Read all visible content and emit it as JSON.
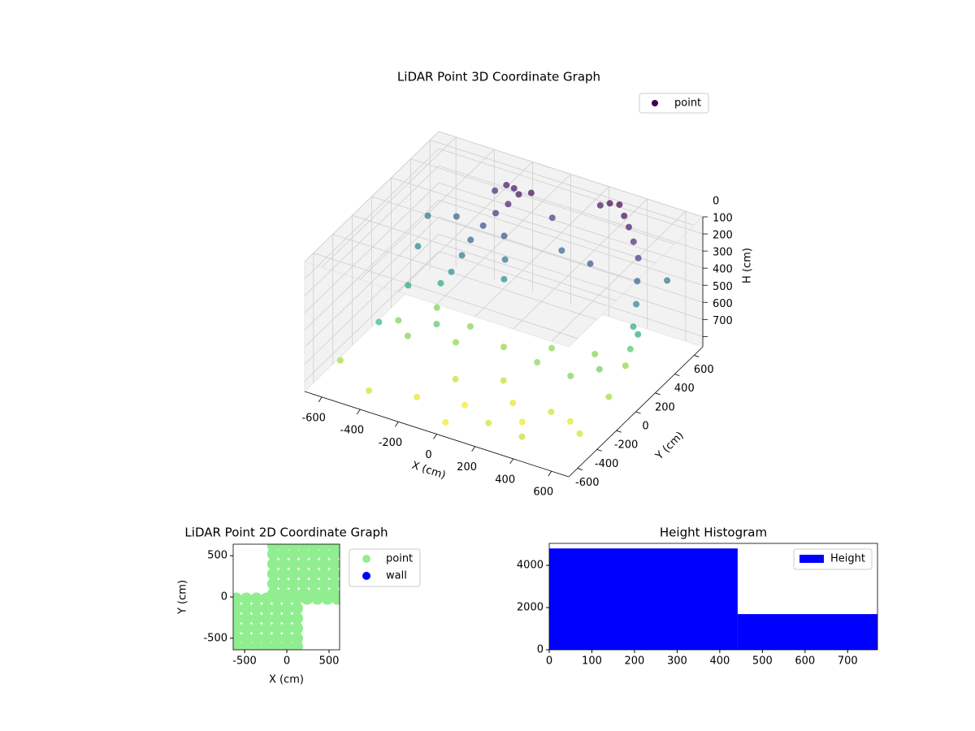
{
  "chart_data": [
    {
      "type": "scatter3d",
      "title": "LiDAR Point 3D Coordinate Graph",
      "xlabel": "X (cm)",
      "ylabel": "Y (cm)",
      "zlabel": "H (cm)",
      "xlim": [
        -690,
        690
      ],
      "ylim": [
        -690,
        690
      ],
      "zlim": [
        0,
        760
      ],
      "zinvert": true,
      "xticks": [
        -600,
        -400,
        -200,
        0,
        200,
        400,
        600
      ],
      "yticks": [
        -600,
        -400,
        -200,
        0,
        200,
        400,
        600
      ],
      "zticks": [
        0,
        100,
        200,
        300,
        400,
        500,
        600,
        700
      ],
      "colormap": "viridis",
      "legend": "upper right",
      "grid": true,
      "series": [
        {
          "name": "point",
          "color": "#440154",
          "x": [
            -200,
            -150,
            -250,
            -100,
            -180,
            -220,
            -260,
            -300,
            -320,
            -350,
            -380,
            -150,
            -120,
            -100,
            300,
            350,
            400,
            450,
            500,
            520,
            540,
            550,
            560,
            560,
            250,
            200,
            -400,
            -200,
            0,
            200,
            400,
            -400,
            -200,
            200,
            400,
            500,
            -600,
            -500,
            -600,
            -400,
            -200,
            0,
            200,
            400,
            600,
            600,
            500,
            300,
            -100,
            100,
            -300,
            -500,
            -550,
            -450,
            0,
            100,
            300,
            600,
            600,
            -300,
            -500,
            0,
            200,
            400
          ],
          "y": [
            500,
            450,
            520,
            480,
            400,
            350,
            300,
            250,
            200,
            150,
            100,
            300,
            250,
            200,
            600,
            550,
            500,
            450,
            400,
            350,
            300,
            250,
            200,
            150,
            600,
            600,
            -200,
            -100,
            0,
            100,
            150,
            100,
            50,
            -50,
            -100,
            0,
            400,
            -300,
            -500,
            -600,
            -500,
            -600,
            -550,
            -600,
            -400,
            -100,
            -300,
            -400,
            -300,
            -200,
            -100,
            0,
            200,
            400,
            500,
            400,
            300,
            500,
            200,
            500,
            -100,
            -400,
            -300,
            -300
          ],
          "z": [
            50,
            40,
            60,
            30,
            80,
            120,
            180,
            250,
            320,
            400,
            450,
            200,
            300,
            380,
            20,
            40,
            60,
            100,
            150,
            250,
            350,
            450,
            550,
            620,
            30,
            60,
            600,
            620,
            630,
            620,
            610,
            600,
            610,
            620,
            600,
            580,
            300,
            500,
            650,
            700,
            720,
            740,
            700,
            680,
            700,
            650,
            720,
            740,
            690,
            680,
            550,
            450,
            350,
            250,
            150,
            250,
            200,
            300,
            450,
            100,
            600,
            750,
            720,
            700
          ]
        }
      ]
    },
    {
      "type": "scatter",
      "title": "LiDAR Point 2D Coordinate Graph",
      "xlabel": "X (cm)",
      "ylabel": "Y (cm)",
      "xlim": [
        -635,
        625
      ],
      "ylim": [
        -640,
        640
      ],
      "xticks": [
        -500,
        0,
        500
      ],
      "yticks": [
        -500,
        0,
        500
      ],
      "legend": "outside",
      "series": [
        {
          "name": "point",
          "color": "#90ee90",
          "x": [
            -160,
            -40,
            80,
            200,
            320,
            440,
            560,
            -160,
            -40,
            80,
            200,
            320,
            440,
            560,
            -160,
            -40,
            80,
            200,
            320,
            440,
            560,
            -160,
            -40,
            80,
            200,
            320,
            440,
            560,
            -160,
            -40,
            80,
            200,
            320,
            440,
            560,
            -160,
            -40,
            80,
            200,
            320,
            440,
            560,
            -600,
            -480,
            -360,
            -240,
            -120,
            0,
            120,
            240,
            360,
            480,
            600,
            -600,
            -480,
            -360,
            -240,
            -120,
            0,
            120,
            -600,
            -480,
            -360,
            -240,
            -120,
            0,
            120,
            -600,
            -480,
            -360,
            -240,
            -120,
            0,
            120,
            -600,
            -480,
            -360,
            -240,
            -120,
            0,
            120,
            -600,
            -480,
            -360,
            -240,
            -120,
            0,
            120
          ],
          "y": [
            40,
            40,
            40,
            40,
            40,
            40,
            40,
            160,
            160,
            160,
            160,
            160,
            160,
            160,
            280,
            280,
            280,
            280,
            280,
            280,
            280,
            400,
            400,
            400,
            400,
            400,
            400,
            400,
            520,
            520,
            520,
            520,
            520,
            520,
            520,
            620,
            620,
            620,
            620,
            620,
            620,
            620,
            -20,
            -20,
            -20,
            -20,
            -20,
            -20,
            -20,
            -20,
            -20,
            -20,
            -20,
            -140,
            -140,
            -140,
            -140,
            -140,
            -140,
            -140,
            -260,
            -260,
            -260,
            -260,
            -260,
            -260,
            -260,
            -380,
            -380,
            -380,
            -380,
            -380,
            -380,
            -380,
            -500,
            -500,
            -500,
            -500,
            -500,
            -500,
            -500,
            -600,
            -600,
            -600,
            -600,
            -600,
            -600,
            -600
          ]
        },
        {
          "name": "wall",
          "color": "#0000ff",
          "x": [],
          "y": []
        }
      ]
    },
    {
      "type": "histogram",
      "title": "Height Histogram",
      "name": "Height",
      "color": "#0000ff",
      "bins": [
        0,
        442,
        770
      ],
      "counts": [
        4800,
        1690
      ],
      "xlim": [
        0,
        770
      ],
      "ylim": [
        0,
        5040
      ],
      "xticks": [
        0,
        100,
        200,
        300,
        400,
        500,
        600,
        700
      ],
      "yticks": [
        0,
        2000,
        4000
      ],
      "legend": "upper right"
    }
  ]
}
